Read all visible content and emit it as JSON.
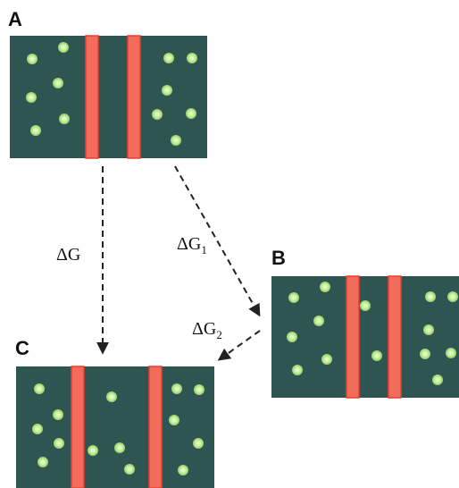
{
  "panels": {
    "a": {
      "label": "A"
    },
    "b": {
      "label": "B"
    },
    "c": {
      "label": "C"
    }
  },
  "transitions": {
    "a_to_c": {
      "symbol": "ΔG",
      "subscript": ""
    },
    "a_to_b": {
      "symbol": "ΔG",
      "subscript": "1"
    },
    "b_to_c": {
      "symbol": "ΔG",
      "subscript": "2"
    }
  },
  "colors": {
    "compartment": "#2f5553",
    "membrane": "#f26b5b",
    "membrane_edge": "#e8402c",
    "particle": "#b8e88c",
    "particle_core": "#eaffd8",
    "arrow": "#222222"
  }
}
